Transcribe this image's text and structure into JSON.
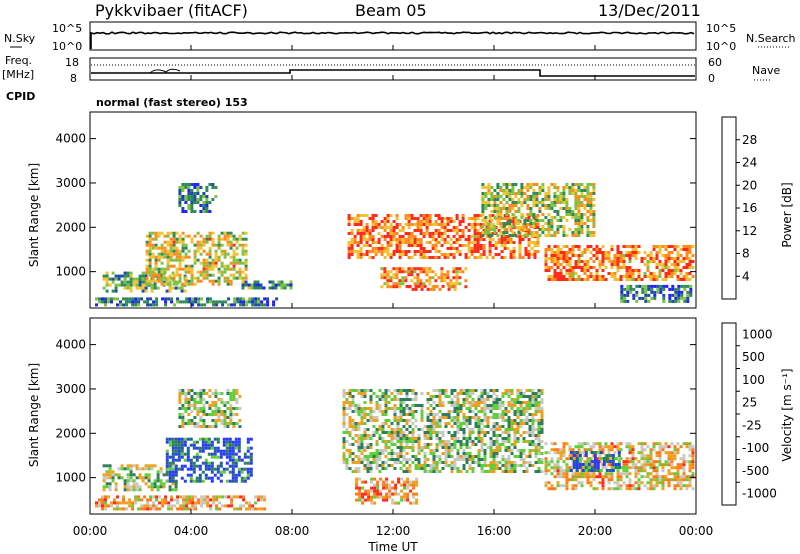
{
  "header": {
    "station": "Pykkvibaer (fitACF)",
    "beam": "Beam 05",
    "date": "13/Dec/2011"
  },
  "small_panels": {
    "nsky_label": "N.Sky",
    "nsky_ticks": [
      "10^5",
      "10^0"
    ],
    "nsearch_label": "N.Search",
    "nsearch_ticks": [
      "10^5",
      "10^0"
    ],
    "freq_label_1": "Freq.",
    "freq_label_2": "[MHz]",
    "freq_ticks": [
      "18",
      "8"
    ],
    "nave_label": "Nave",
    "nave_ticks": [
      "60",
      "0"
    ],
    "cpid_label": "CPID",
    "cpid_value": "normal (fast stereo) 153"
  },
  "chart_data": [
    {
      "type": "heatmap",
      "title": "",
      "ylabel": "Slant Range [km]",
      "yticks": [
        "1000",
        "2000",
        "3000",
        "4000"
      ],
      "ylim": [
        180,
        4600
      ],
      "xlim": [
        0,
        24
      ],
      "colorbar_label": "Power [dB]",
      "colorbar_ticks": [
        "4",
        "8",
        "12",
        "16",
        "20",
        "24",
        "28"
      ],
      "colorbar_range": [
        0,
        32
      ],
      "colors": [
        "#1f1fff",
        "#1e4aa8",
        "#2e8b57",
        "#7fc241",
        "#f2c230",
        "#ff8a1e",
        "#ff2a1a"
      ],
      "echo_regions": [
        {
          "t0": 0.2,
          "t1": 7.4,
          "r0": 250,
          "r1": 420,
          "level": 0.28
        },
        {
          "t0": 0.5,
          "t1": 3.8,
          "r0": 500,
          "r1": 1000,
          "level": 0.45
        },
        {
          "t0": 2.2,
          "t1": 6.2,
          "r0": 700,
          "r1": 1900,
          "level": 0.62
        },
        {
          "t0": 3.5,
          "t1": 5.0,
          "r0": 2300,
          "r1": 3000,
          "level": 0.3
        },
        {
          "t0": 6.0,
          "t1": 8.0,
          "r0": 600,
          "r1": 800,
          "level": 0.35
        },
        {
          "t0": 10.2,
          "t1": 17.8,
          "r0": 1300,
          "r1": 2300,
          "level": 0.82
        },
        {
          "t0": 11.5,
          "t1": 15.0,
          "r0": 600,
          "r1": 1100,
          "level": 0.72
        },
        {
          "t0": 12.5,
          "t1": 14.5,
          "r0": 550,
          "r1": 700,
          "level": 0.95
        },
        {
          "t0": 15.5,
          "t1": 20.0,
          "r0": 1800,
          "r1": 3000,
          "level": 0.55
        },
        {
          "t0": 18.0,
          "t1": 23.9,
          "r0": 800,
          "r1": 1600,
          "level": 0.8
        },
        {
          "t0": 21.0,
          "t1": 23.9,
          "r0": 300,
          "r1": 700,
          "level": 0.3
        }
      ]
    },
    {
      "type": "heatmap",
      "title": "",
      "ylabel": "Slant Range [km]",
      "yticks": [
        "1000",
        "2000",
        "3000",
        "4000"
      ],
      "ylim": [
        180,
        4600
      ],
      "xlim": [
        0,
        24
      ],
      "xlabel": "Time UT",
      "xticks": [
        "00:00",
        "04:00",
        "08:00",
        "12:00",
        "16:00",
        "20:00",
        "00:00"
      ],
      "colorbar_label": "Velocity [m s⁻¹]",
      "colorbar_ticks": [
        "1000",
        "500",
        "100",
        "25",
        "-25",
        "-100",
        "-500",
        "-1000"
      ],
      "colors": [
        "#2a3aff",
        "#1f5fa0",
        "#2e7d5b",
        "#5fcf3a",
        "#c8c8c0",
        "#f0a020",
        "#ff7a18",
        "#ff2a1a"
      ],
      "echo_regions": [
        {
          "t0": 0.2,
          "t1": 7.0,
          "r0": 250,
          "r1": 600,
          "level": 0.3
        },
        {
          "t0": 0.5,
          "t1": 3.5,
          "r0": 700,
          "r1": 1300,
          "level": 0.5
        },
        {
          "t0": 3.0,
          "t1": 6.5,
          "r0": 900,
          "r1": 1900,
          "level": 0.82
        },
        {
          "t0": 3.5,
          "t1": 6.0,
          "r0": 2100,
          "r1": 3000,
          "level": 0.5
        },
        {
          "t0": 10.0,
          "t1": 18.0,
          "r0": 1100,
          "r1": 3000,
          "level": 0.5
        },
        {
          "t0": 10.5,
          "t1": 13.0,
          "r0": 400,
          "r1": 1000,
          "level": 0.28
        },
        {
          "t0": 18.0,
          "t1": 23.9,
          "r0": 700,
          "r1": 1800,
          "level": 0.35
        },
        {
          "t0": 19.0,
          "t1": 21.0,
          "r0": 1100,
          "r1": 1600,
          "level": 0.82
        }
      ]
    }
  ]
}
